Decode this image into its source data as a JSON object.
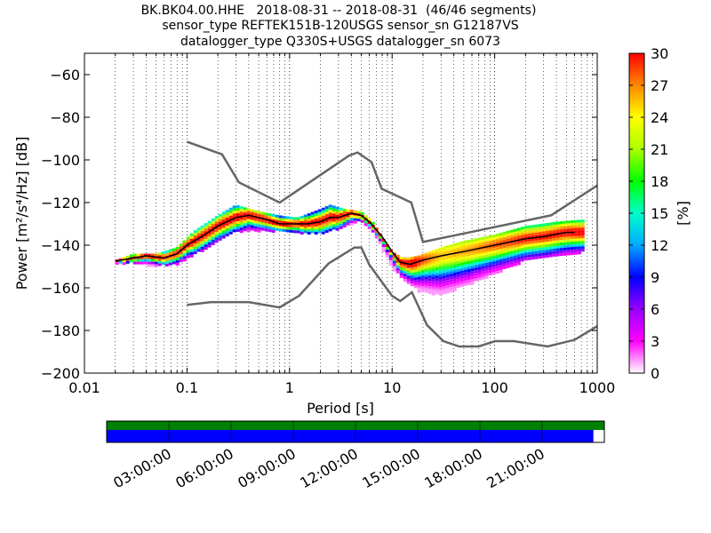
{
  "chart_data": [
    {
      "type": "heatmap",
      "title_lines": [
        "BK.BK04.00.HHE   2018-08-31 -- 2018-08-31  (46/46 segments)",
        "sensor_type REFTEK151B-120USGS sensor_sn G12187VS",
        "datalogger_type Q330S+USGS datalogger_sn 6073"
      ],
      "xlabel": "Period [s]",
      "ylabel": "Power [m²/s⁴/Hz] [dB]",
      "x_scale": "log",
      "xlim": [
        0.01,
        1000
      ],
      "ylim": [
        -200,
        -50
      ],
      "x_ticks": [
        {
          "value": 0.01,
          "label": "0.01"
        },
        {
          "value": 0.1,
          "label": "0.1"
        },
        {
          "value": 1,
          "label": "1"
        },
        {
          "value": 10,
          "label": "10"
        },
        {
          "value": 100,
          "label": "100"
        },
        {
          "value": 1000,
          "label": "1000"
        }
      ],
      "y_ticks": [
        {
          "value": -60,
          "label": "−60"
        },
        {
          "value": -80,
          "label": "−80"
        },
        {
          "value": -100,
          "label": "−100"
        },
        {
          "value": -120,
          "label": "−120"
        },
        {
          "value": -140,
          "label": "−140"
        },
        {
          "value": -160,
          "label": "−160"
        },
        {
          "value": -180,
          "label": "−180"
        },
        {
          "value": -200,
          "label": "−200"
        }
      ],
      "grid": "vertical dotted",
      "colorbar": {
        "label": "[%]",
        "range": [
          0,
          30
        ],
        "ticks": [
          "0",
          "3",
          "6",
          "9",
          "12",
          "15",
          "18",
          "21",
          "24",
          "27",
          "30"
        ],
        "colormap": [
          "#ffffff",
          "#ff00ff",
          "#9900ff",
          "#0000ff",
          "#00aaff",
          "#00ffcc",
          "#00ff00",
          "#aaff00",
          "#ffff00",
          "#ff8800",
          "#ff0000"
        ]
      },
      "noise_model_high": {
        "x": [
          0.1,
          0.22,
          0.32,
          0.8,
          3.8,
          4.6,
          6.3,
          7.9,
          15.4,
          20,
          354.8,
          1000
        ],
        "y": [
          -91.5,
          -97.4,
          -110.5,
          -120,
          -98,
          -96.5,
          -101,
          -113.5,
          -120,
          -138.5,
          -126,
          -112
        ]
      },
      "noise_model_low": {
        "x": [
          0.1,
          0.17,
          0.4,
          0.8,
          1.24,
          2.4,
          4.3,
          5,
          6,
          10,
          12,
          15.6,
          21.9,
          31.6,
          45,
          70,
          101,
          154,
          328,
          600,
          1000
        ],
        "y": [
          -168,
          -166.7,
          -166.7,
          -169.2,
          -163.7,
          -148.6,
          -141.1,
          -141.1,
          -149.2,
          -163.8,
          -166.2,
          -162.1,
          -177.5,
          -185,
          -187.5,
          -187.5,
          -185,
          -185,
          -187.5,
          -184.4,
          -178
        ]
      },
      "ppsd_mode_curve": {
        "x": [
          0.02,
          0.03,
          0.04,
          0.06,
          0.08,
          0.1,
          0.15,
          0.2,
          0.3,
          0.4,
          0.6,
          0.8,
          1,
          1.5,
          2,
          2.5,
          3,
          4,
          5,
          6,
          8,
          10,
          12,
          15,
          20,
          30,
          50,
          100,
          200,
          300,
          500,
          600
        ],
        "y": [
          -147.5,
          -146,
          -145,
          -146,
          -144,
          -140,
          -135,
          -131,
          -127,
          -126,
          -128,
          -130,
          -130,
          -130,
          -129,
          -127,
          -127,
          -125,
          -126,
          -129,
          -136,
          -143,
          -148,
          -149,
          -147,
          -145,
          -143,
          -140,
          -137,
          -136,
          -134,
          -134
        ]
      },
      "ppsd_upper_edge": {
        "x": [
          0.02,
          0.03,
          0.05,
          0.08,
          0.12,
          0.2,
          0.3,
          0.5,
          0.8,
          1.2,
          2,
          2.5,
          3.5,
          5,
          6.5,
          8,
          10,
          13,
          18,
          30,
          50,
          100,
          200,
          400,
          700
        ],
        "y": [
          -147,
          -144,
          -144,
          -141,
          -133,
          -126,
          -121,
          -124,
          -126,
          -127,
          -123,
          -121,
          -123,
          -124,
          -129,
          -136,
          -143,
          -146,
          -145,
          -141,
          -138,
          -135,
          -131,
          -129,
          -128
        ]
      },
      "ppsd_lower_edge": {
        "x": [
          0.02,
          0.03,
          0.05,
          0.08,
          0.12,
          0.2,
          0.3,
          0.5,
          0.8,
          1.2,
          2,
          2.5,
          3.5,
          5,
          6.5,
          8,
          10,
          13,
          18,
          30,
          50,
          100,
          200,
          400,
          700
        ],
        "y": [
          -148.5,
          -148,
          -149.5,
          -148.5,
          -144,
          -138,
          -133,
          -133,
          -133,
          -134,
          -134,
          -133,
          -131,
          -128,
          -133,
          -141,
          -150,
          -156,
          -161,
          -163,
          -159,
          -153,
          -147,
          -145,
          -143
        ]
      },
      "data_coverage": {
        "time_ticks": [
          "03:00:00",
          "06:00:00",
          "09:00:00",
          "12:00:00",
          "15:00:00",
          "18:00:00",
          "21:00:00"
        ],
        "coverage_fraction": 0.978,
        "top_bar_color": "#008000",
        "bottom_bar_color": "#0000ff"
      }
    }
  ]
}
